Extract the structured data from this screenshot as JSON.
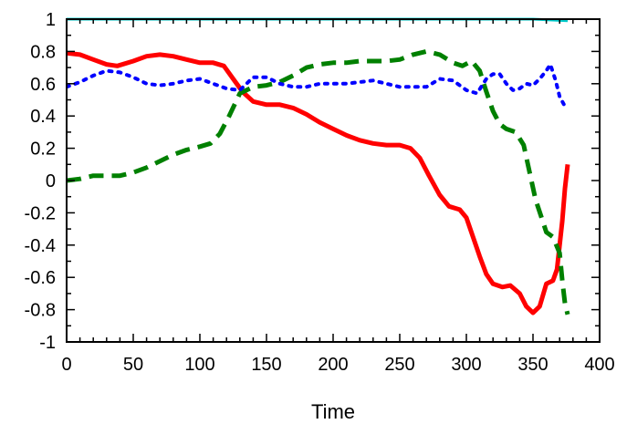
{
  "chart_data": {
    "type": "line",
    "title": "",
    "xlabel": "Time",
    "ylabel": "",
    "xlim": [
      0,
      400
    ],
    "ylim": [
      -1,
      1
    ],
    "x_ticks": [
      0,
      50,
      100,
      150,
      200,
      250,
      300,
      350,
      400
    ],
    "y_ticks": [
      -1,
      -0.8,
      -0.6,
      -0.4,
      -0.2,
      0,
      0.2,
      0.4,
      0.6,
      0.8,
      1
    ],
    "x_tick_labels": [
      "0",
      "50",
      "100",
      "150",
      "200",
      "250",
      "300",
      "350",
      "400"
    ],
    "y_tick_labels": [
      "-1",
      "-0.8",
      "-0.6",
      "-0.4",
      "-0.2",
      "0",
      "0.2",
      "0.4",
      "0.6",
      "0.8",
      "1"
    ],
    "grid": false,
    "legend": "none",
    "series": [
      {
        "color": "#ff0000",
        "style": "solid",
        "points": [
          [
            0,
            0.79
          ],
          [
            10,
            0.78
          ],
          [
            20,
            0.75
          ],
          [
            30,
            0.72
          ],
          [
            38,
            0.71
          ],
          [
            50,
            0.74
          ],
          [
            60,
            0.77
          ],
          [
            70,
            0.78
          ],
          [
            80,
            0.77
          ],
          [
            90,
            0.75
          ],
          [
            100,
            0.73
          ],
          [
            110,
            0.73
          ],
          [
            118,
            0.71
          ],
          [
            125,
            0.63
          ],
          [
            132,
            0.55
          ],
          [
            140,
            0.49
          ],
          [
            150,
            0.47
          ],
          [
            160,
            0.47
          ],
          [
            170,
            0.45
          ],
          [
            180,
            0.41
          ],
          [
            190,
            0.36
          ],
          [
            200,
            0.32
          ],
          [
            210,
            0.28
          ],
          [
            220,
            0.25
          ],
          [
            230,
            0.23
          ],
          [
            240,
            0.22
          ],
          [
            250,
            0.22
          ],
          [
            258,
            0.2
          ],
          [
            265,
            0.14
          ],
          [
            272,
            0.03
          ],
          [
            280,
            -0.09
          ],
          [
            287,
            -0.16
          ],
          [
            295,
            -0.18
          ],
          [
            300,
            -0.23
          ],
          [
            305,
            -0.35
          ],
          [
            310,
            -0.47
          ],
          [
            315,
            -0.58
          ],
          [
            320,
            -0.64
          ],
          [
            327,
            -0.66
          ],
          [
            333,
            -0.65
          ],
          [
            340,
            -0.7
          ],
          [
            345,
            -0.78
          ],
          [
            350,
            -0.82
          ],
          [
            355,
            -0.78
          ],
          [
            360,
            -0.64
          ],
          [
            365,
            -0.62
          ],
          [
            368,
            -0.55
          ],
          [
            372,
            -0.25
          ],
          [
            374,
            -0.05
          ],
          [
            376,
            0.1
          ]
        ]
      },
      {
        "color": "#008000",
        "style": "dash",
        "points": [
          [
            0,
            0
          ],
          [
            10,
            0.01
          ],
          [
            20,
            0.03
          ],
          [
            30,
            0.03
          ],
          [
            40,
            0.03
          ],
          [
            50,
            0.05
          ],
          [
            60,
            0.08
          ],
          [
            70,
            0.12
          ],
          [
            80,
            0.16
          ],
          [
            90,
            0.19
          ],
          [
            100,
            0.21
          ],
          [
            108,
            0.23
          ],
          [
            115,
            0.29
          ],
          [
            122,
            0.4
          ],
          [
            130,
            0.54
          ],
          [
            140,
            0.58
          ],
          [
            150,
            0.59
          ],
          [
            160,
            0.61
          ],
          [
            170,
            0.65
          ],
          [
            180,
            0.7
          ],
          [
            190,
            0.72
          ],
          [
            200,
            0.73
          ],
          [
            210,
            0.73
          ],
          [
            220,
            0.74
          ],
          [
            230,
            0.74
          ],
          [
            240,
            0.74
          ],
          [
            250,
            0.75
          ],
          [
            260,
            0.78
          ],
          [
            270,
            0.8
          ],
          [
            280,
            0.78
          ],
          [
            290,
            0.73
          ],
          [
            297,
            0.71
          ],
          [
            304,
            0.74
          ],
          [
            310,
            0.68
          ],
          [
            315,
            0.55
          ],
          [
            320,
            0.43
          ],
          [
            325,
            0.35
          ],
          [
            330,
            0.32
          ],
          [
            337,
            0.3
          ],
          [
            343,
            0.22
          ],
          [
            348,
            0.03
          ],
          [
            352,
            -0.12
          ],
          [
            356,
            -0.22
          ],
          [
            360,
            -0.32
          ],
          [
            365,
            -0.35
          ],
          [
            370,
            -0.45
          ],
          [
            372,
            -0.62
          ],
          [
            374,
            -0.76
          ],
          [
            376,
            -0.83
          ]
        ]
      },
      {
        "color": "#0000ff",
        "style": "dot",
        "points": [
          [
            0,
            0.58
          ],
          [
            10,
            0.61
          ],
          [
            20,
            0.65
          ],
          [
            30,
            0.68
          ],
          [
            40,
            0.67
          ],
          [
            50,
            0.64
          ],
          [
            60,
            0.6
          ],
          [
            70,
            0.59
          ],
          [
            80,
            0.6
          ],
          [
            90,
            0.62
          ],
          [
            100,
            0.63
          ],
          [
            110,
            0.6
          ],
          [
            120,
            0.57
          ],
          [
            130,
            0.56
          ],
          [
            140,
            0.64
          ],
          [
            150,
            0.64
          ],
          [
            160,
            0.6
          ],
          [
            170,
            0.58
          ],
          [
            180,
            0.58
          ],
          [
            190,
            0.6
          ],
          [
            200,
            0.6
          ],
          [
            210,
            0.6
          ],
          [
            220,
            0.61
          ],
          [
            230,
            0.62
          ],
          [
            240,
            0.6
          ],
          [
            250,
            0.58
          ],
          [
            260,
            0.58
          ],
          [
            270,
            0.58
          ],
          [
            280,
            0.63
          ],
          [
            290,
            0.62
          ],
          [
            300,
            0.56
          ],
          [
            308,
            0.54
          ],
          [
            315,
            0.63
          ],
          [
            320,
            0.66
          ],
          [
            325,
            0.66
          ],
          [
            330,
            0.6
          ],
          [
            335,
            0.56
          ],
          [
            340,
            0.57
          ],
          [
            345,
            0.6
          ],
          [
            350,
            0.59
          ],
          [
            355,
            0.63
          ],
          [
            360,
            0.68
          ],
          [
            363,
            0.72
          ],
          [
            367,
            0.62
          ],
          [
            370,
            0.52
          ],
          [
            374,
            0.46
          ]
        ]
      },
      {
        "color": "#00cccc",
        "style": "solid",
        "points": [
          [
            0,
            1.0
          ],
          [
            50,
            1.0
          ],
          [
            100,
            1.0
          ],
          [
            150,
            1.0
          ],
          [
            200,
            1.0
          ],
          [
            250,
            1.0
          ],
          [
            300,
            1.0
          ],
          [
            350,
            1.0
          ],
          [
            376,
            0.99
          ]
        ]
      }
    ]
  }
}
